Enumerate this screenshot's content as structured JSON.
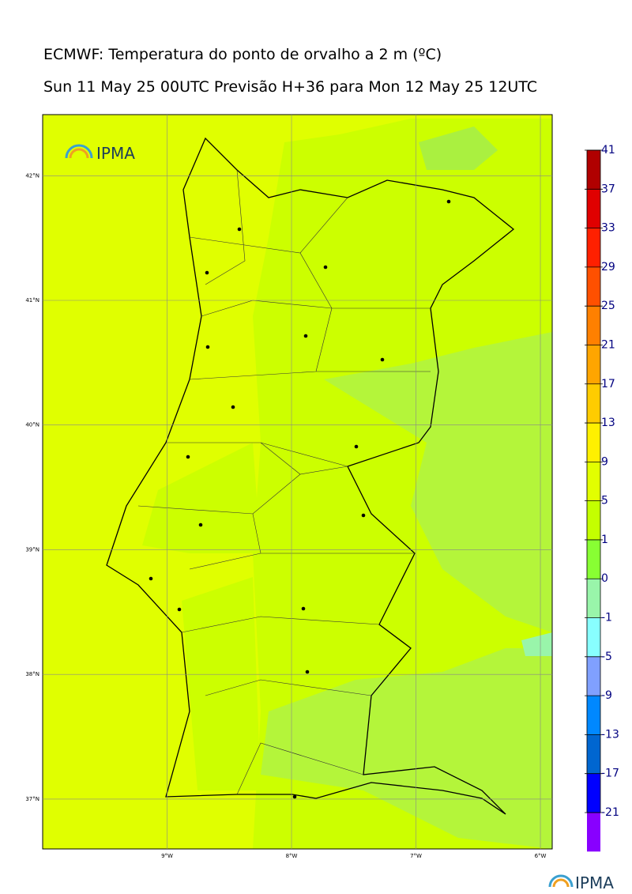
{
  "header": {
    "title": "ECMWF: Temperatura do ponto de orvalho a 2 m (ºC)",
    "subtitle": "Sun 11 May 25 00UTC Previsão H+36 para Mon 12 May 25 12UTC"
  },
  "map": {
    "logo": "IPMA",
    "xlim": [
      -10,
      -5.905
    ],
    "ylim": [
      36.6,
      42.49
    ],
    "xticks": [
      {
        "value": -9,
        "label": "9°W"
      },
      {
        "value": -8,
        "label": "8°W"
      },
      {
        "value": -7,
        "label": "7°W"
      },
      {
        "value": -6,
        "label": "6°W"
      }
    ],
    "yticks": [
      {
        "value": 42,
        "label": "42°N"
      },
      {
        "value": 41,
        "label": "41°N"
      },
      {
        "value": 40,
        "label": "40°N"
      },
      {
        "value": 39,
        "label": "39°N"
      },
      {
        "value": 38,
        "label": "38°N"
      },
      {
        "value": 37,
        "label": "37°N"
      }
    ]
  },
  "colorbar": {
    "ticks": [
      41,
      37,
      33,
      29,
      25,
      21,
      17,
      13,
      9,
      5,
      1,
      0,
      -1,
      -5,
      -9,
      -13,
      -17,
      -21
    ],
    "colors": [
      "#b00000",
      "#e00000",
      "#ff2000",
      "#ff5000",
      "#ff8000",
      "#ffa500",
      "#ffcc00",
      "#fff000",
      "#e2ff00",
      "#c4ff00",
      "#88ff33",
      "#99f5aa",
      "#88ffff",
      "#80a0ff",
      "#0088ff",
      "#0066d0",
      "#0000ff",
      "#8800ff"
    ]
  },
  "footer": {
    "logo": "IPMA"
  }
}
